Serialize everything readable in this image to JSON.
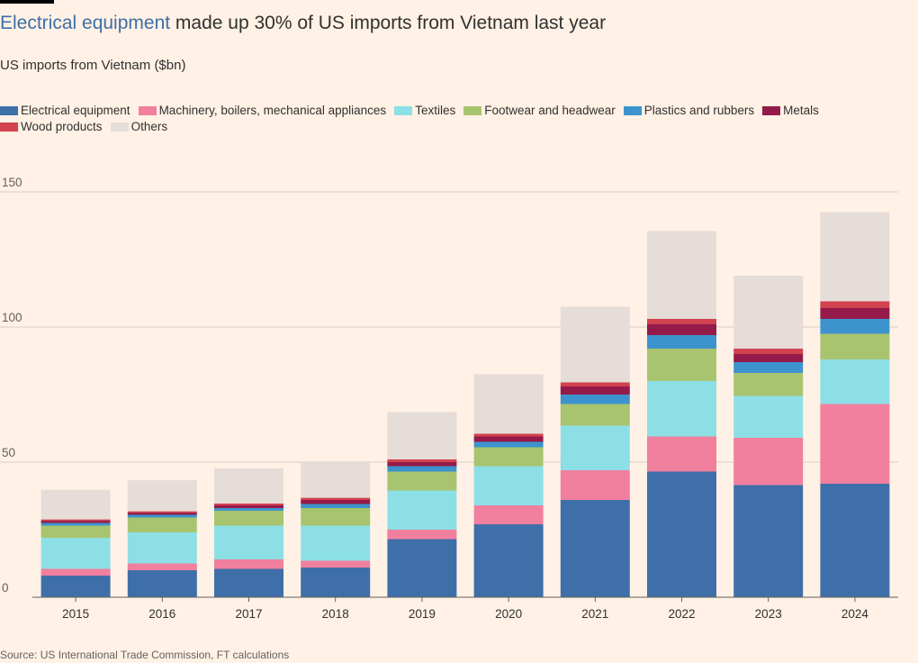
{
  "header": {
    "title_highlight": "Electrical equipment",
    "title_rest": " made up 30% of US imports from Vietnam last year",
    "subtitle": "US imports from Vietnam ($bn)"
  },
  "footer": {
    "source": "Source: US International Trade Commission, FT calculations"
  },
  "chart_data": {
    "type": "bar",
    "stacked": true,
    "title": "Electrical equipment made up 30% of US imports from Vietnam last year",
    "subtitle": "US imports from Vietnam ($bn)",
    "xlabel": "",
    "ylabel": "",
    "ylim": [
      0,
      150
    ],
    "yticks": [
      0,
      50,
      100,
      150
    ],
    "grid": true,
    "legend_position": "top",
    "categories": [
      "2015",
      "2016",
      "2017",
      "2018",
      "2019",
      "2020",
      "2021",
      "2022",
      "2023",
      "2024"
    ],
    "series": [
      {
        "name": "Electrical equipment",
        "color": "#3F6FA8",
        "values": [
          8,
          10,
          10.5,
          11,
          21.5,
          27,
          36,
          46.5,
          41.5,
          42
        ]
      },
      {
        "name": "Machinery, boilers, mechanical appliances",
        "color": "#F17F9E",
        "values": [
          2.5,
          2.5,
          3.5,
          2.5,
          3.5,
          7,
          11,
          13,
          17.5,
          29.5
        ]
      },
      {
        "name": "Textiles",
        "color": "#8DDFE6",
        "values": [
          11.5,
          11.5,
          12.5,
          13,
          14.5,
          14.5,
          16.5,
          20.5,
          15.5,
          16.5
        ]
      },
      {
        "name": "Footwear and headwear",
        "color": "#A9C46E",
        "values": [
          4.5,
          5.5,
          5.5,
          6.5,
          7,
          7,
          8,
          12,
          8.5,
          9.5
        ]
      },
      {
        "name": "Plastics and rubbers",
        "color": "#3D93CE",
        "values": [
          1,
          1,
          1,
          1.5,
          2,
          2,
          3.5,
          5,
          4,
          5.5
        ]
      },
      {
        "name": "Metals",
        "color": "#941B49",
        "values": [
          0.8,
          0.8,
          1,
          1.5,
          1.5,
          2,
          3,
          4,
          3,
          4
        ]
      },
      {
        "name": "Wood products",
        "color": "#D2424F",
        "values": [
          0.5,
          0.5,
          0.7,
          0.8,
          1,
          1,
          1.5,
          2,
          2,
          2.5
        ]
      },
      {
        "name": "Others",
        "color": "#E6DDD8",
        "values": [
          11,
          11.5,
          13,
          13.5,
          17.5,
          22,
          28,
          32.5,
          27,
          33
        ]
      }
    ]
  }
}
